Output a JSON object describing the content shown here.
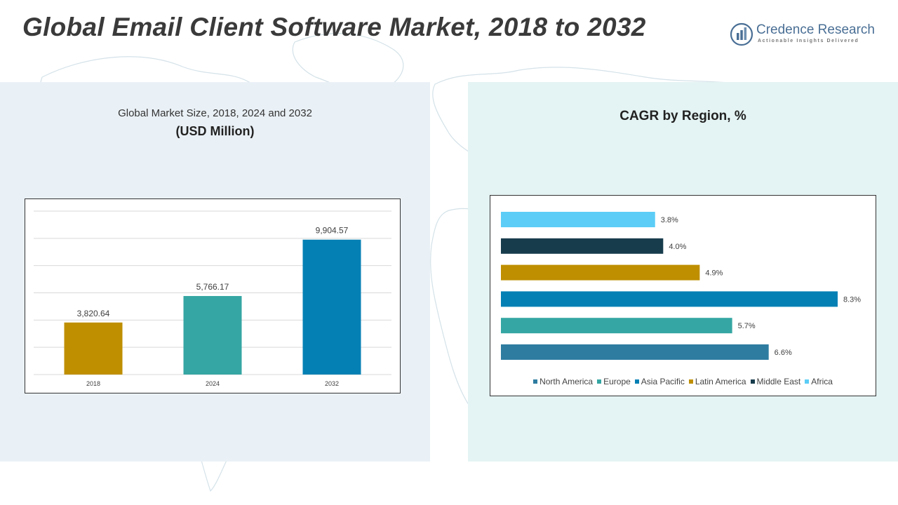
{
  "header": {
    "title": "Global Email Client Software Market, 2018 to 2032",
    "logo_name": "Credence Research",
    "logo_tagline": "Actionable Insights Delivered"
  },
  "left_panel": {
    "title": "Global Market Size, 2018, 2024 and 2032",
    "subtitle": "(USD Million)"
  },
  "right_panel": {
    "title": "CAGR by Region, %"
  },
  "chart_data": [
    {
      "type": "bar",
      "title": "Global Market Size, 2018, 2024 and 2032",
      "subtitle": "(USD Million)",
      "categories": [
        "2018",
        "2024",
        "2032"
      ],
      "values": [
        3820.64,
        5766.17,
        9904.57
      ],
      "value_labels": [
        "3,820.64",
        "5,766.17",
        "9,904.57"
      ],
      "colors": [
        "#bf8f00",
        "#35a6a3",
        "#0480b4"
      ],
      "ylim": [
        0,
        12000
      ],
      "grid": true,
      "xlabel": "",
      "ylabel": ""
    },
    {
      "type": "bar",
      "orientation": "horizontal",
      "title": "CAGR by Region, %",
      "categories": [
        "North America",
        "Europe",
        "Asia Pacific",
        "Latin America",
        "Middle East",
        "Africa"
      ],
      "values": [
        6.6,
        5.7,
        8.3,
        4.9,
        4.0,
        3.8
      ],
      "value_labels": [
        "6.6%",
        "5.7%",
        "8.3%",
        "4.9%",
        "4.0%",
        "3.8%"
      ],
      "colors": [
        "#2e7ca0",
        "#35a6a3",
        "#0480b4",
        "#bf8f00",
        "#173c4c",
        "#5ccdf6"
      ],
      "xlim": [
        0,
        8.3
      ],
      "grid": false,
      "legend": "bottom"
    }
  ]
}
